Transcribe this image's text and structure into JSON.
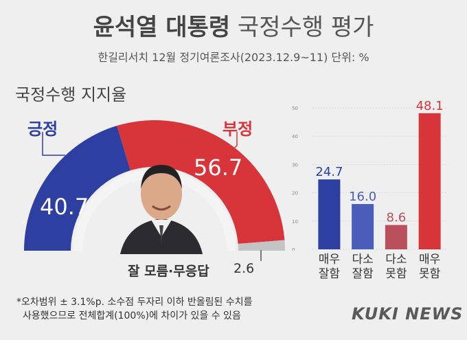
{
  "header": {
    "title_bold": "윤석열 대통령",
    "title_light": "국정수행 평가",
    "subtitle": "한길리서치 12월 정기여론조사(2023.12.9~11) 단위: %"
  },
  "section_title": "국정수행 지지율",
  "gauge": {
    "positive_label": "긍정",
    "positive_value": "40.7",
    "negative_label": "부정",
    "negative_value": "56.7",
    "dontknow_label": "잘 모름·무응답",
    "dontknow_value": "2.6"
  },
  "note": "*오차범위 ± 3.1%p. 소수점 두자리 이하 반올림된 수치를\n  사용했으므로 전체합계(100%)에 차이가 있을 수 있음",
  "logo": "KUKI NEWS",
  "colors": {
    "positive": "#2d3fa0",
    "positive_light": "#4a5dbb",
    "negative": "#d8353a",
    "negative_light": "#b9505c",
    "dontknow": "#c4c4c4"
  },
  "chart_data": [
    {
      "type": "pie",
      "categories": [
        "긍정",
        "부정",
        "잘 모름·무응답"
      ],
      "values": [
        40.7,
        56.7,
        2.6
      ]
    },
    {
      "type": "bar",
      "categories": [
        "매우 잘함",
        "다소 잘함",
        "다소 못함",
        "매우 못함"
      ],
      "category_lines": [
        [
          "매우",
          "잘함"
        ],
        [
          "다소",
          "잘함"
        ],
        [
          "다소",
          "못함"
        ],
        [
          "매우",
          "못함"
        ]
      ],
      "values": [
        24.7,
        16.0,
        8.6,
        48.1
      ],
      "value_labels": [
        "24.7",
        "16.0",
        "8.6",
        "48.1"
      ],
      "yticks": [
        "0",
        "10",
        "20",
        "30",
        "40",
        "50"
      ],
      "ylim": [
        0,
        50
      ],
      "colors": [
        "#2d3fa0",
        "#4a5dbb",
        "#b9505c",
        "#d8353a"
      ]
    }
  ]
}
